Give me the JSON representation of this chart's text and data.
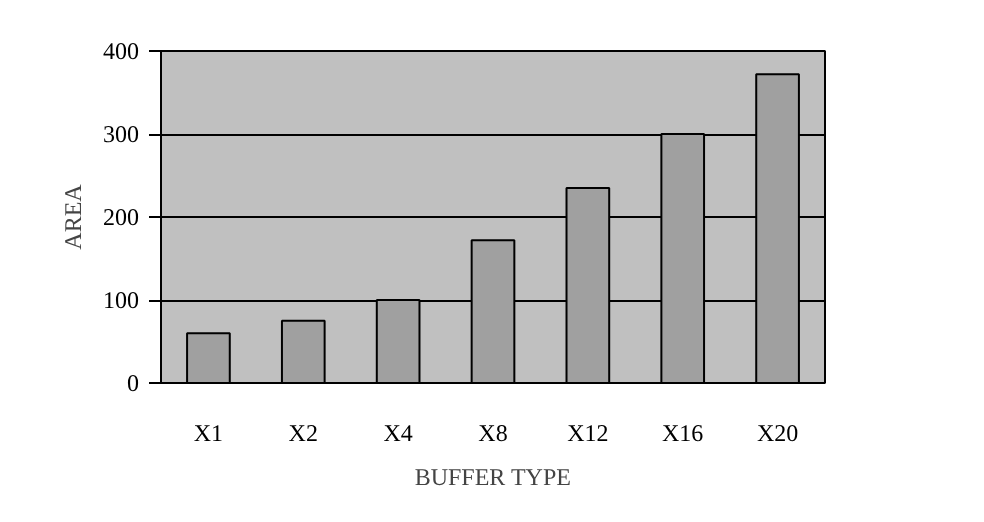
{
  "chart_data": {
    "type": "bar",
    "xlabel": "BUFFER TYPE",
    "ylabel": "AREA",
    "categories": [
      "X1",
      "X2",
      "X4",
      "X8",
      "X12",
      "X16",
      "X20"
    ],
    "values": [
      60,
      75,
      100,
      172,
      235,
      300,
      372
    ],
    "color": "#a0a0a0",
    "ylim": [
      0,
      400
    ],
    "yticks": [
      0,
      100,
      200,
      300,
      400
    ],
    "grid": "y"
  }
}
